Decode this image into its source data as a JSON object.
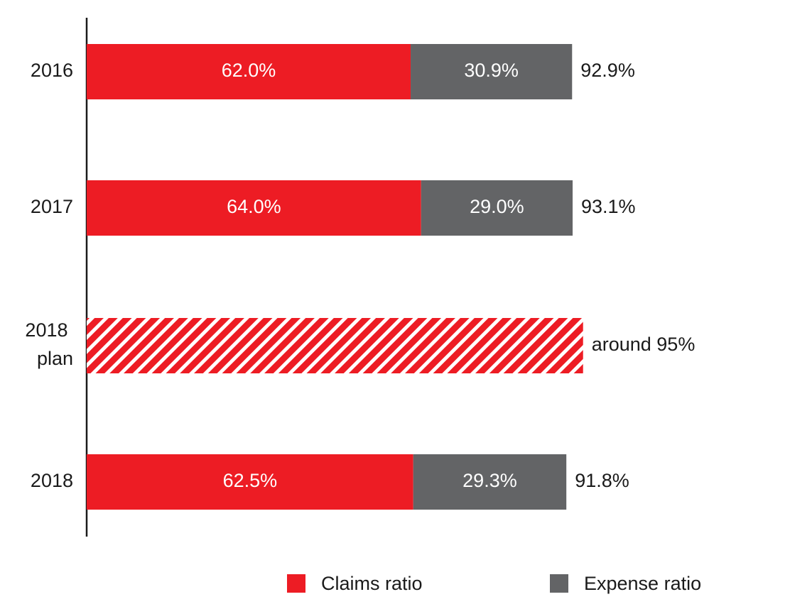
{
  "chart_data": {
    "type": "stacked-bar",
    "orientation": "horizontal",
    "categories": [
      "2016",
      "2017",
      "2018 plan",
      "2018"
    ],
    "series": [
      {
        "name": "Claims ratio",
        "color": "#ed1c24",
        "values": [
          62.0,
          64.0,
          null,
          62.5
        ],
        "value_labels": [
          "62.0%",
          "64.0%",
          null,
          "62.5%"
        ]
      },
      {
        "name": "Expense ratio",
        "color": "#636466",
        "values": [
          30.9,
          29.0,
          null,
          29.3
        ],
        "value_labels": [
          "30.9%",
          "29.0%",
          null,
          "29.3%"
        ]
      }
    ],
    "totals": {
      "values": [
        92.9,
        93.1,
        95,
        91.8
      ],
      "value_labels": [
        "92.9%",
        "93.1%",
        "around 95%",
        "91.8%"
      ],
      "plan_color": "#ed1c24"
    },
    "xlim": [
      0,
      100
    ]
  }
}
